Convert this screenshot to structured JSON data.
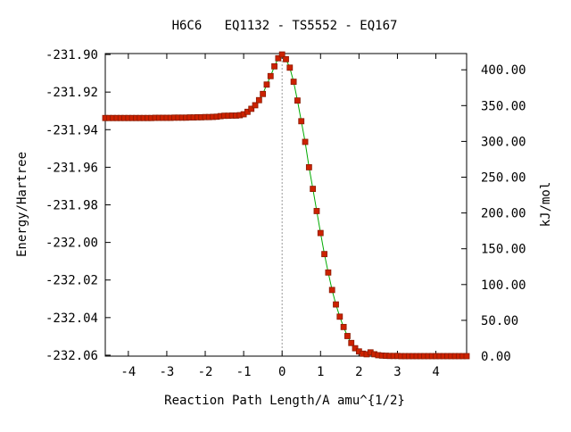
{
  "chart_data": {
    "type": "scatter",
    "title": "H6C6   EQ1132 - TS5552 - EQ167",
    "xlabel": "Reaction Path Length/A amu^{1/2}",
    "ylabel": "Energy/Hartree",
    "y2label": "kJ/mol",
    "xlim": [
      -4.6,
      4.8
    ],
    "ylim": [
      -232.0605,
      -231.8995
    ],
    "x_ticks": [
      -4,
      -3,
      -2,
      -1,
      0,
      1,
      2,
      3,
      4
    ],
    "x_tick_labels": [
      "-4",
      "-3",
      "-2",
      "-1",
      "0",
      "1",
      "2",
      "3",
      "4"
    ],
    "y_ticks": [
      -231.9,
      -231.92,
      -231.94,
      -231.96,
      -231.98,
      -232.0,
      -232.02,
      -232.04,
      -232.06
    ],
    "y_tick_labels": [
      "-231.90",
      "-231.92",
      "-231.94",
      "-231.96",
      "-231.98",
      "-232.00",
      "-232.02",
      "-232.04",
      "-232.06"
    ],
    "y2_ticks": [
      0,
      50,
      100,
      150,
      200,
      250,
      300,
      350,
      400
    ],
    "y2_tick_labels": [
      "0.00",
      "50.00",
      "100.00",
      "150.00",
      "200.00",
      "250.00",
      "300.00",
      "350.00",
      "400.00"
    ],
    "y2_zero_energy": -232.0605,
    "hartree_to_kj": 2625.5,
    "ts_marker_x": 0,
    "grid": false,
    "line_color": "#00aa00",
    "marker_color": "#cc2200",
    "marker_edge_color": "#8b1a00",
    "series": [
      {
        "points": [
          [
            -4.6,
            -231.9338
          ],
          [
            -4.5,
            -231.9338
          ],
          [
            -4.4,
            -231.9338
          ],
          [
            -4.3,
            -231.9338
          ],
          [
            -4.2,
            -231.9338
          ],
          [
            -4.1,
            -231.9338
          ],
          [
            -4.0,
            -231.9338
          ],
          [
            -3.9,
            -231.9338
          ],
          [
            -3.8,
            -231.9338
          ],
          [
            -3.7,
            -231.9338
          ],
          [
            -3.6,
            -231.9338
          ],
          [
            -3.5,
            -231.9338
          ],
          [
            -3.4,
            -231.9338
          ],
          [
            -3.3,
            -231.9337
          ],
          [
            -3.2,
            -231.9337
          ],
          [
            -3.1,
            -231.9337
          ],
          [
            -3.0,
            -231.9337
          ],
          [
            -2.9,
            -231.9337
          ],
          [
            -2.8,
            -231.9336
          ],
          [
            -2.7,
            -231.9336
          ],
          [
            -2.6,
            -231.9336
          ],
          [
            -2.5,
            -231.9336
          ],
          [
            -2.4,
            -231.9335
          ],
          [
            -2.3,
            -231.9335
          ],
          [
            -2.2,
            -231.9334
          ],
          [
            -2.1,
            -231.9334
          ],
          [
            -2.0,
            -231.9333
          ],
          [
            -1.9,
            -231.9333
          ],
          [
            -1.8,
            -231.9332
          ],
          [
            -1.7,
            -231.9331
          ],
          [
            -1.6,
            -231.9328
          ],
          [
            -1.5,
            -231.9326
          ],
          [
            -1.4,
            -231.9326
          ],
          [
            -1.3,
            -231.9325
          ],
          [
            -1.2,
            -231.9325
          ],
          [
            -1.1,
            -231.9323
          ],
          [
            -1.0,
            -231.9318
          ],
          [
            -0.9,
            -231.9305
          ],
          [
            -0.8,
            -231.9289
          ],
          [
            -0.7,
            -231.927
          ],
          [
            -0.6,
            -231.9243
          ],
          [
            -0.5,
            -231.921
          ],
          [
            -0.4,
            -231.916
          ],
          [
            -0.3,
            -231.9115
          ],
          [
            -0.2,
            -231.9063
          ],
          [
            -0.1,
            -231.902
          ],
          [
            0.0,
            -231.9
          ],
          [
            0.1,
            -231.9025
          ],
          [
            0.2,
            -231.907
          ],
          [
            0.3,
            -231.9145
          ],
          [
            0.4,
            -231.9245
          ],
          [
            0.5,
            -231.9355
          ],
          [
            0.6,
            -231.9465
          ],
          [
            0.7,
            -231.96
          ],
          [
            0.8,
            -231.9715
          ],
          [
            0.9,
            -231.9833
          ],
          [
            1.0,
            -231.995
          ],
          [
            1.1,
            -232.0062
          ],
          [
            1.2,
            -232.016
          ],
          [
            1.3,
            -232.0253
          ],
          [
            1.4,
            -232.033
          ],
          [
            1.5,
            -232.0395
          ],
          [
            1.6,
            -232.045
          ],
          [
            1.7,
            -232.0498
          ],
          [
            1.8,
            -232.0535
          ],
          [
            1.9,
            -232.0563
          ],
          [
            2.0,
            -232.058
          ],
          [
            2.1,
            -232.0592
          ],
          [
            2.2,
            -232.0595
          ],
          [
            2.3,
            -232.0585
          ],
          [
            2.4,
            -232.0595
          ],
          [
            2.5,
            -232.06
          ],
          [
            2.6,
            -232.0602
          ],
          [
            2.7,
            -232.0603
          ],
          [
            2.8,
            -232.0604
          ],
          [
            2.9,
            -232.0604
          ],
          [
            3.0,
            -232.0604
          ],
          [
            3.1,
            -232.0605
          ],
          [
            3.2,
            -232.0605
          ],
          [
            3.3,
            -232.0605
          ],
          [
            3.4,
            -232.0605
          ],
          [
            3.5,
            -232.0605
          ],
          [
            3.6,
            -232.0605
          ],
          [
            3.7,
            -232.0605
          ],
          [
            3.8,
            -232.0605
          ],
          [
            3.9,
            -232.0605
          ],
          [
            4.0,
            -232.0605
          ],
          [
            4.1,
            -232.0605
          ],
          [
            4.2,
            -232.0605
          ],
          [
            4.3,
            -232.0605
          ],
          [
            4.4,
            -232.0605
          ],
          [
            4.5,
            -232.0605
          ],
          [
            4.6,
            -232.0605
          ],
          [
            4.7,
            -232.0605
          ],
          [
            4.8,
            -232.0605
          ]
        ]
      }
    ]
  }
}
